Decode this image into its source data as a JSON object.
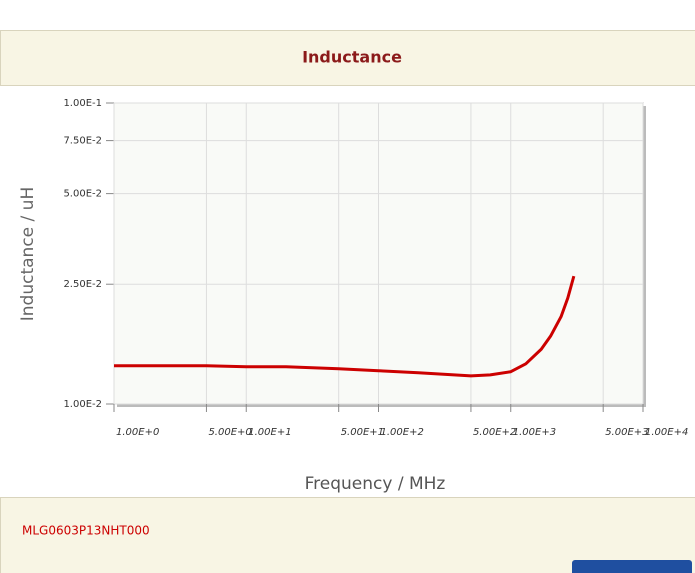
{
  "chart_data": {
    "type": "line",
    "title": "Inductance",
    "xlabel": "Frequency / MHz",
    "ylabel": "Inductance / uH",
    "xscale": "log",
    "yscale": "log",
    "grid": true,
    "color": "#cc0000",
    "x": [
      1,
      2,
      5,
      10,
      20,
      50,
      100,
      200,
      500,
      700,
      1000,
      1300,
      1700,
      2000,
      2400,
      2700,
      3000
    ],
    "values": [
      0.0134,
      0.0134,
      0.0134,
      0.0133,
      0.0133,
      0.0131,
      0.0129,
      0.0127,
      0.0124,
      0.0125,
      0.0128,
      0.0136,
      0.0152,
      0.0168,
      0.0195,
      0.0225,
      0.0266
    ],
    "xlim": [
      1,
      10000
    ],
    "xticks": [
      {
        "value": 1,
        "label": "1.00E+0"
      },
      {
        "value": 5,
        "label": "5.00E+0"
      },
      {
        "value": 10,
        "label": "1.00E+1"
      },
      {
        "value": 50,
        "label": "5.00E+1"
      },
      {
        "value": 100,
        "label": "1.00E+2"
      },
      {
        "value": 500,
        "label": "5.00E+2"
      },
      {
        "value": 1000,
        "label": "1.00E+3"
      },
      {
        "value": 5000,
        "label": "5.00E+3"
      },
      {
        "value": 10000,
        "label": "1.00E+4"
      }
    ],
    "ylim": [
      0.01,
      0.1
    ],
    "yticks": [
      {
        "value": 0.01,
        "label": "1.00E-2"
      },
      {
        "value": 0.025,
        "label": "2.50E-2"
      },
      {
        "value": 0.05,
        "label": "5.00E-2"
      },
      {
        "value": 0.075,
        "label": "7.50E-2"
      },
      {
        "value": 0.1,
        "label": "1.00E-1"
      }
    ]
  },
  "footer": {
    "part_number": "MLG0603P13NHT000"
  }
}
